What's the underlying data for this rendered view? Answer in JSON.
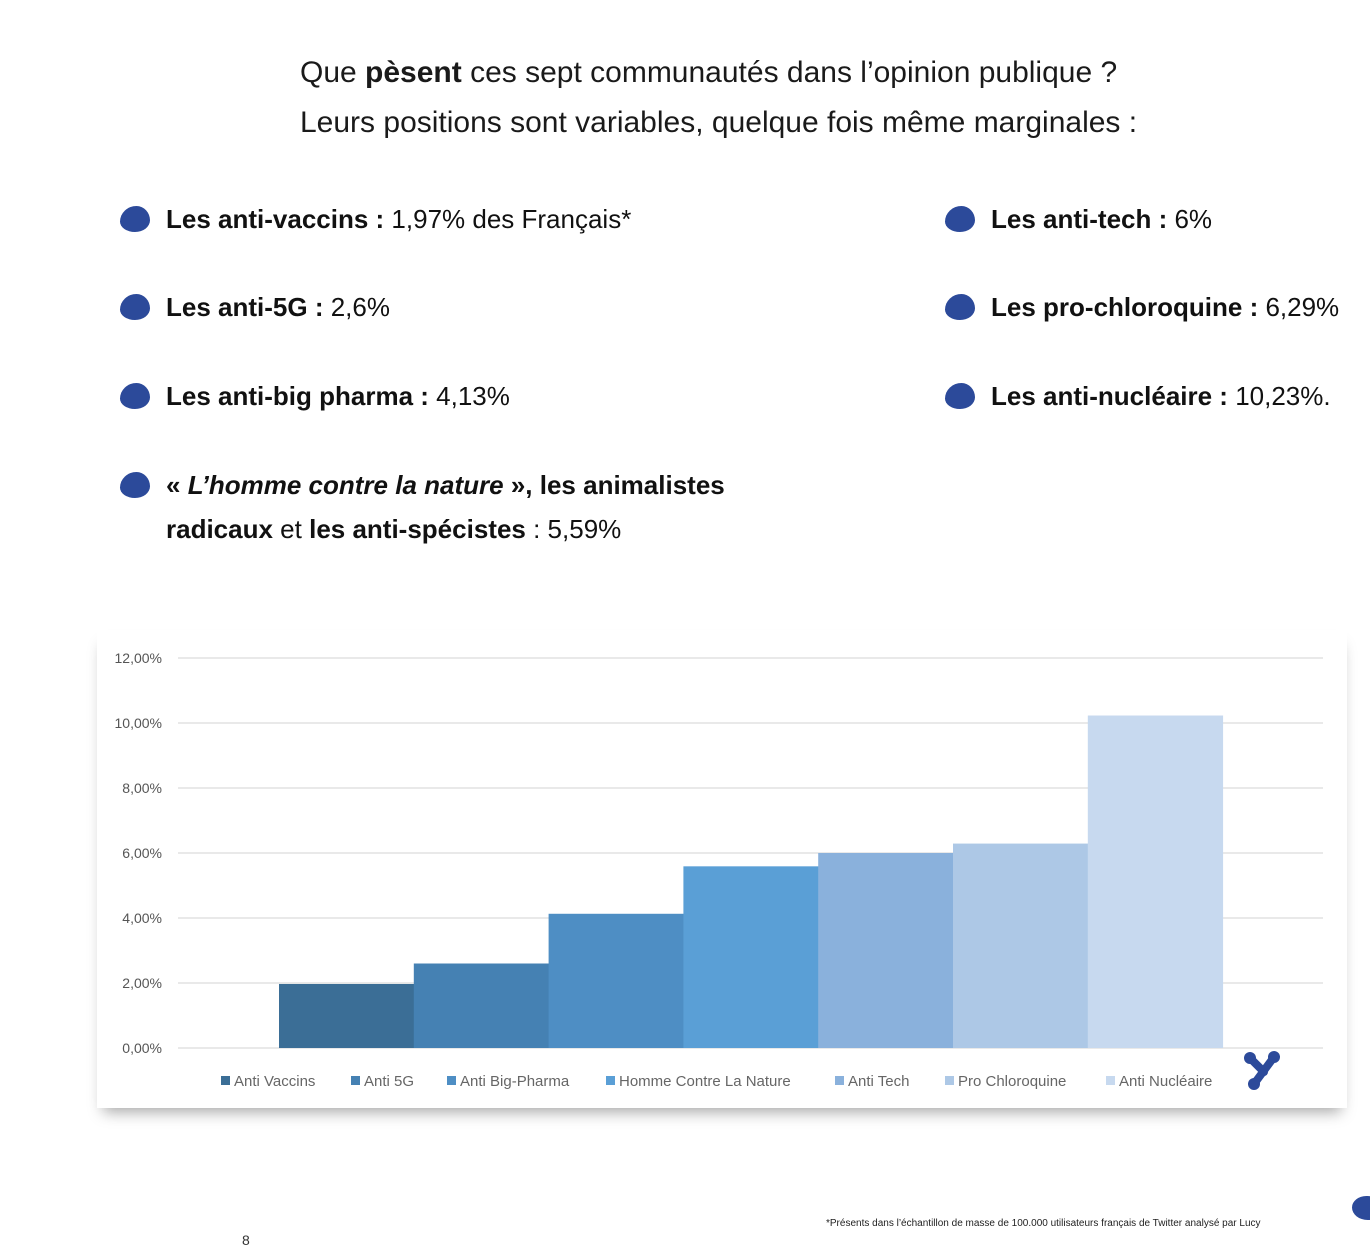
{
  "intro": {
    "line1_pre": "Que ",
    "line1_bold": "pèsent",
    "line1_post": " ces sept communautés dans l’opinion publique ?",
    "line2": "Leurs positions sont variables, quelque fois même marginales :"
  },
  "bullets": {
    "vaccins": {
      "label": "Les anti-vaccins :",
      "value": " 1,97% des Français*"
    },
    "fiveg": {
      "label": "Les anti-5G :",
      "value": " 2,6%"
    },
    "pharma": {
      "label": "Les anti-big pharma :",
      "value": " 4,13%"
    },
    "nature": {
      "open": "« ",
      "italic": "L’homme contre la nature",
      "close": " », les animalistes",
      "line2_bold1": "radicaux",
      "line2_mid": " et ",
      "line2_bold2": "les anti-spécistes",
      "line2_value": " : 5,59%"
    },
    "tech": {
      "label": "Les anti-tech :",
      "value": " 6%"
    },
    "chloro": {
      "label": "Les pro-chloroquine :",
      "value": " 6,29%"
    },
    "nucleaire": {
      "label": "Les anti-nucléaire :",
      "value": " 10,23%."
    }
  },
  "chart_data": {
    "type": "bar",
    "categories": [
      "Anti Vaccins",
      "Anti 5G",
      "Anti Big-Pharma",
      "Homme Contre La Nature",
      "Anti Tech",
      "Pro Chloroquine",
      "Anti Nucléaire"
    ],
    "values": [
      1.97,
      2.6,
      4.13,
      5.59,
      6.0,
      6.29,
      10.23
    ],
    "colors": [
      "#3b6e96",
      "#4581b3",
      "#4e8ec4",
      "#5a9fd6",
      "#8ab1dc",
      "#adc8e6",
      "#c7d9ef"
    ],
    "yticks": [
      "0,00%",
      "2,00%",
      "4,00%",
      "6,00%",
      "8,00%",
      "10,00%",
      "12,00%"
    ],
    "ylim": [
      0,
      12
    ],
    "grid": true,
    "legend": "bottom"
  },
  "footnote": "*Présents dans l’échantillon de masse de 100.000 utilisateurs français de Twitter analysé par Lucy",
  "page_number": "8"
}
